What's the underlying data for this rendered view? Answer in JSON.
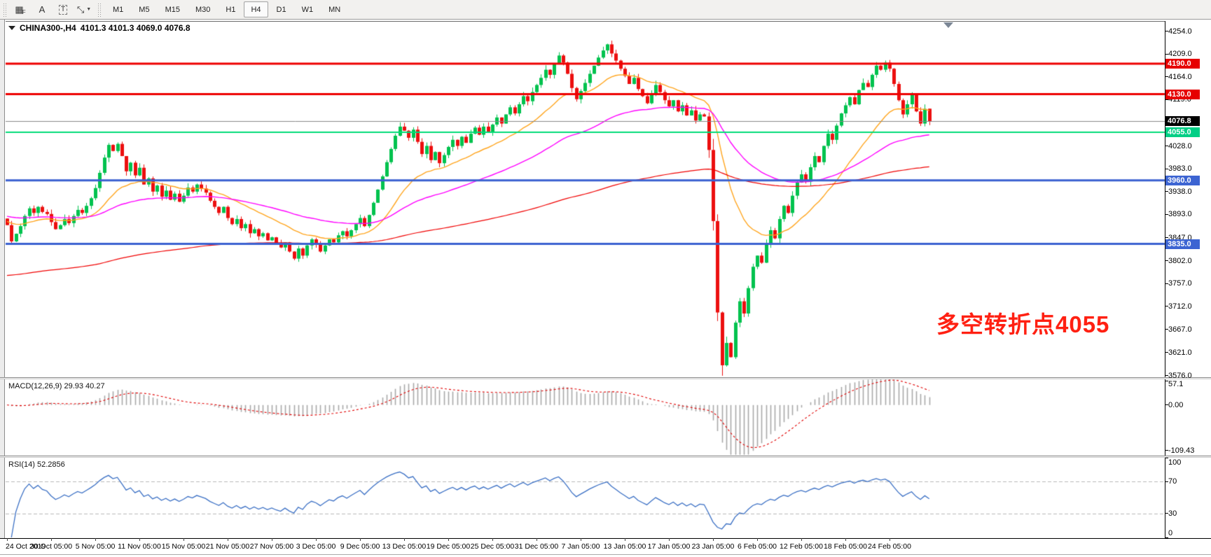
{
  "toolbar": {
    "tools": [
      {
        "name": "grid-f-icon",
        "glyph": "▦",
        "sub": "F"
      },
      {
        "name": "text-label-icon",
        "glyph": "A",
        "sub": ""
      },
      {
        "name": "text-box-icon",
        "glyph": "T",
        "sub": "",
        "boxed": true
      },
      {
        "name": "arrows-tool-icon",
        "glyph": "⤡",
        "sub": "",
        "caret": "▼"
      }
    ],
    "timeframes": [
      {
        "label": "M1",
        "active": false
      },
      {
        "label": "M5",
        "active": false
      },
      {
        "label": "M15",
        "active": false
      },
      {
        "label": "M30",
        "active": false
      },
      {
        "label": "H1",
        "active": false
      },
      {
        "label": "H4",
        "active": true
      },
      {
        "label": "D1",
        "active": false
      },
      {
        "label": "W1",
        "active": false
      },
      {
        "label": "MN",
        "active": false
      }
    ]
  },
  "chart": {
    "title_symbol": "CHINA300-,H4",
    "title_quote": "4101.3 4101.3 4069.0 4076.8",
    "annotation": {
      "text": "多空转折点4055",
      "color": "#ff2012"
    }
  },
  "chart_data": {
    "type": "candlestick",
    "symbol": "CHINA300-",
    "timeframe": "H4",
    "ohlc_quote": {
      "open": 4101.3,
      "high": 4101.3,
      "low": 4069.0,
      "close": 4076.8
    },
    "current_price": 4076.8,
    "y_range": [
      3574,
      4274
    ],
    "y_ticks": [
      4254.0,
      4209.0,
      4164.0,
      4119.0,
      4028.0,
      3983.0,
      3938.0,
      3893.0,
      3847.0,
      3802.0,
      3757.0,
      3712.0,
      3667.0,
      3621.0,
      3576.0
    ],
    "colors": {
      "up_candle": "#00c24e",
      "down_candle": "#ec0f0f",
      "current_price_line": "#888888",
      "current_price_badge": "#000000"
    },
    "hlines": [
      {
        "price": 4190.0,
        "color": "#ee0000",
        "width": 3,
        "badge_bg": "#e60000"
      },
      {
        "price": 4130.0,
        "color": "#ee0000",
        "width": 3,
        "badge_bg": "#e60000"
      },
      {
        "price": 4055.0,
        "color": "#00dc78",
        "width": 2,
        "badge_bg": "#00cf85"
      },
      {
        "price": 3960.0,
        "color": "#3a60d0",
        "width": 3,
        "badge_bg": "#3c64d2"
      },
      {
        "price": 3835.0,
        "color": "#3a60d0",
        "width": 3,
        "badge_bg": "#3c64d2"
      }
    ],
    "overlays": [
      {
        "name": "ma-fast-orange",
        "period": 21,
        "seed": 3880,
        "color": "#ffa51e",
        "width": 1.4
      },
      {
        "name": "ma-mid-magenta",
        "period": 60,
        "seed": 3890,
        "color": "#ff00ff",
        "width": 1.4
      },
      {
        "name": "ma-slow-red",
        "period": 200,
        "seed": 3772,
        "color": "#f00000",
        "width": 1.2
      }
    ],
    "first_open": 3885,
    "closes": [
      3872,
      3840,
      3855,
      3870,
      3890,
      3905,
      3896,
      3908,
      3898,
      3894,
      3878,
      3864,
      3872,
      3884,
      3876,
      3890,
      3902,
      3896,
      3910,
      3925,
      3945,
      3975,
      4005,
      4030,
      4018,
      4032,
      4008,
      3978,
      3995,
      3970,
      3985,
      3952,
      3964,
      3938,
      3950,
      3928,
      3940,
      3922,
      3934,
      3918,
      3930,
      3946,
      3938,
      3952,
      3944,
      3936,
      3920,
      3908,
      3896,
      3908,
      3886,
      3874,
      3884,
      3866,
      3874,
      3856,
      3864,
      3850,
      3856,
      3842,
      3848,
      3836,
      3828,
      3838,
      3820,
      3806,
      3826,
      3812,
      3832,
      3844,
      3836,
      3820,
      3832,
      3844,
      3838,
      3852,
      3860,
      3850,
      3862,
      3874,
      3886,
      3870,
      3892,
      3916,
      3942,
      3968,
      3996,
      4022,
      4048,
      4066,
      4058,
      4044,
      4060,
      4036,
      4012,
      4028,
      4000,
      4016,
      3994,
      4010,
      4026,
      4040,
      4028,
      4046,
      4034,
      4052,
      4064,
      4050,
      4066,
      4056,
      4070,
      4084,
      4072,
      4090,
      4104,
      4092,
      4110,
      4126,
      4116,
      4134,
      4148,
      4162,
      4178,
      4168,
      4190,
      4206,
      4192,
      4170,
      4142,
      4120,
      4136,
      4152,
      4170,
      4186,
      4202,
      4216,
      4228,
      4210,
      4196,
      4180,
      4166,
      4150,
      4162,
      4140,
      4126,
      4112,
      4130,
      4148,
      4134,
      4118,
      4106,
      4118,
      4096,
      4108,
      4088,
      4098,
      4078,
      4090,
      4086,
      4020,
      3880,
      3700,
      3596,
      3640,
      3612,
      3680,
      3722,
      3698,
      3748,
      3790,
      3812,
      3798,
      3836,
      3862,
      3846,
      3884,
      3910,
      3896,
      3930,
      3956,
      3972,
      3958,
      3986,
      4008,
      3996,
      4028,
      4052,
      4040,
      4068,
      4092,
      4108,
      4124,
      4110,
      4138,
      4152,
      4144,
      4168,
      4186,
      4178,
      4192,
      4180,
      4150,
      4118,
      4090,
      4110,
      4128,
      4096,
      4072,
      4101,
      4077
    ],
    "crash_bars": [
      159,
      163
    ],
    "x_labels": [
      "24 Oct 2019",
      "30 Oct 05:00",
      "5 Nov 05:00",
      "11 Nov 05:00",
      "15 Nov 05:00",
      "21 Nov 05:00",
      "27 Nov 05:00",
      "3 Dec 05:00",
      "9 Dec 05:00",
      "13 Dec 05:00",
      "19 Dec 05:00",
      "25 Dec 05:00",
      "31 Dec 05:00",
      "7 Jan 05:00",
      "13 Jan 05:00",
      "17 Jan 05:00",
      "23 Jan 05:00",
      "6 Feb 05:00",
      "12 Feb 05:00",
      "18 Feb 05:00",
      "24 Feb 05:00"
    ],
    "bars_per_label": 10,
    "sub_indicators": [
      {
        "name": "MACD",
        "label": "MACD(12,26,9) 29.93 40.27",
        "params": [
          12,
          26,
          9
        ],
        "main_value": "29.93",
        "signal_value": "40.27",
        "range": [
          -120,
          62
        ],
        "axis_labels": [
          {
            "text": "57.1",
            "value": 57.1
          },
          {
            "text": "0.00",
            "value": 0
          },
          {
            "text": "-109.43",
            "value": -109.43
          }
        ],
        "hist_color": "#a9a9a9",
        "signal_color": "#e00000"
      },
      {
        "name": "RSI",
        "label": "RSI(14) 52.2856",
        "period": 14,
        "value": "52.2856",
        "range": [
          0,
          100
        ],
        "levels": [
          30,
          70
        ],
        "axis_labels": [
          {
            "text": "100",
            "value": 100
          },
          {
            "text": "70",
            "value": 70
          },
          {
            "text": "30",
            "value": 30
          },
          {
            "text": "0",
            "value": 0
          }
        ],
        "line_color": "#3a6fc4",
        "level_color": "#b8b8b8"
      }
    ]
  }
}
